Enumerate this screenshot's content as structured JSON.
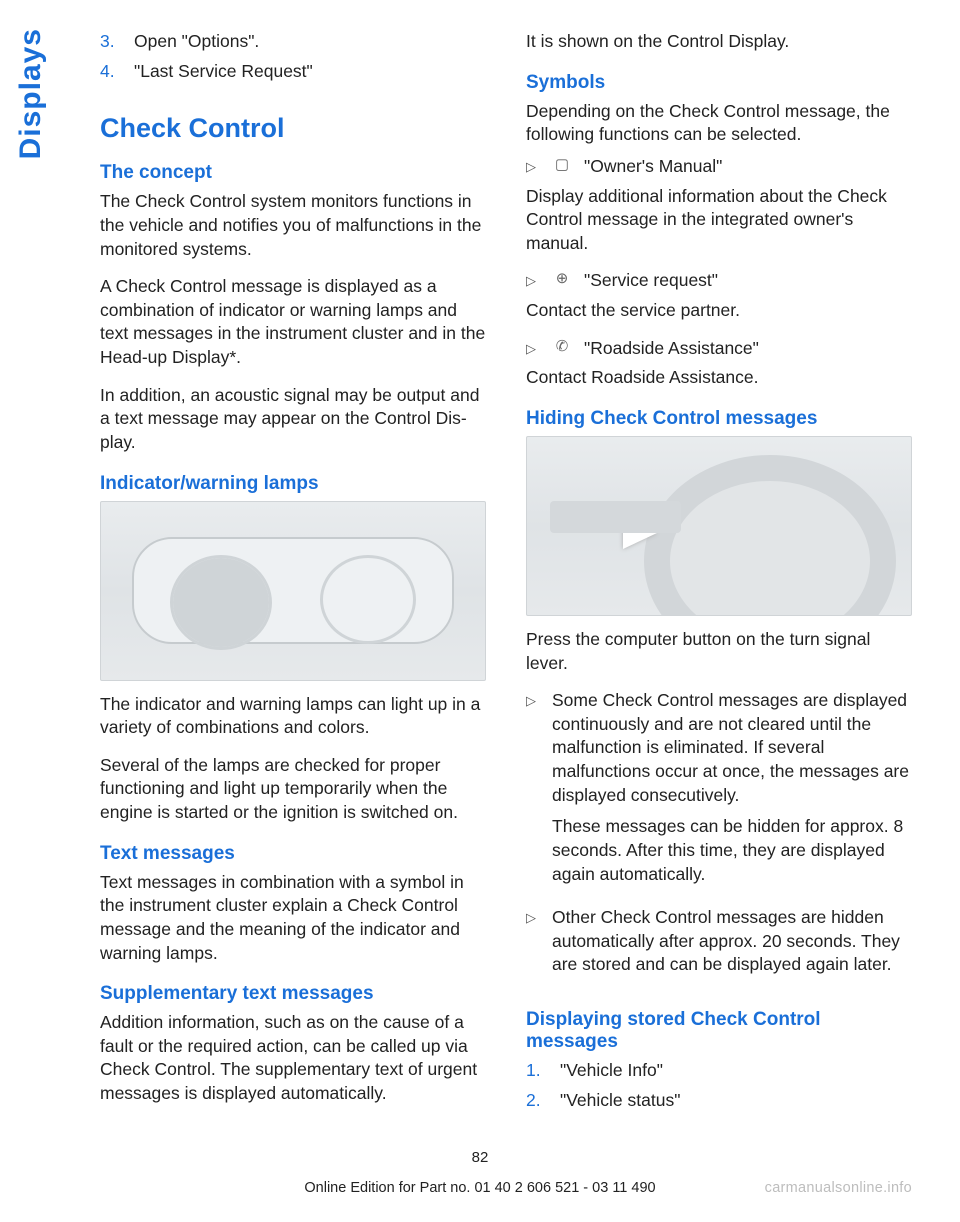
{
  "side_tab": "Displays",
  "left": {
    "top_list": [
      {
        "num": "3.",
        "text": "Open \"Options\"."
      },
      {
        "num": "4.",
        "text": "\"Last Service Request\""
      }
    ],
    "h1": "Check Control",
    "concept_h": "The concept",
    "concept_p1": "The Check Control system monitors functions in the vehicle and notifies you of malfunctions in the monitored systems.",
    "concept_p2": "A Check Control message is displayed as a combination of indicator or warning lamps and text messages in the instrument cluster and in the Head-up Display*.",
    "concept_p3": "In addition, an acoustic signal may be output and a text message may appear on the Control Dis­play.",
    "lamps_h": "Indicator/warning lamps",
    "lamps_p1": "The indicator and warning lamps can light up in a variety of combinations and colors.",
    "lamps_p2": "Several of the lamps are checked for proper functioning and light up temporarily when the engine is started or the ignition is switched on.",
    "text_h": "Text messages",
    "text_p": "Text messages in combination with a symbol in the instrument cluster explain a Check Control message and the meaning of the indicator and warning lamps.",
    "supp_h": "Supplementary text messages",
    "supp_p": "Addition information, such as on the cause of a fault or the required action, can be called up via Check Control. The supplementary text of ur­gent messages is displayed automatically."
  },
  "right": {
    "intro": "It is shown on the Control Display.",
    "symbols_h": "Symbols",
    "symbols_p": "Depending on the Check Control message, the following functions can be selected.",
    "symbols_items": [
      {
        "sym": "▢",
        "label": "\"Owner's Manual\"",
        "desc": "Display additional information about the Check Control message in the integrated owner's manual."
      },
      {
        "sym": "⊕",
        "label": "\"Service request\"",
        "desc": "Contact the service partner."
      },
      {
        "sym": "✆",
        "label": "\"Roadside Assistance\"",
        "desc": "Contact Roadside Assistance."
      }
    ],
    "hiding_h": "Hiding Check Control messages",
    "hiding_p": "Press the computer button on the turn signal lever.",
    "hiding_items": [
      {
        "p1": "Some Check Control messages are dis­played continuously and are not cleared un­til the malfunction is eliminated. If several malfunctions occur at once, the messages are displayed consecutively.",
        "p2": "These messages can be hidden for approx. 8 seconds. After this time, they are dis­played again automatically."
      },
      {
        "p1": "Other Check Control messages are hidden automatically after approx. 20 seconds. They are stored and can be displayed again later."
      }
    ],
    "stored_h": "Displaying stored Check Control messages",
    "stored_list": [
      {
        "num": "1.",
        "text": "\"Vehicle Info\""
      },
      {
        "num": "2.",
        "text": "\"Vehicle status\""
      }
    ]
  },
  "footer": {
    "page_num": "82",
    "line": "Online Edition for Part no. 01 40 2 606 521 - 03 11 490",
    "watermark": "carmanualsonline.info"
  },
  "colors": {
    "accent": "#1a6fd8",
    "text": "#222222",
    "figure_bg": "#e6e9eb",
    "watermark": "#bdbdbd"
  }
}
